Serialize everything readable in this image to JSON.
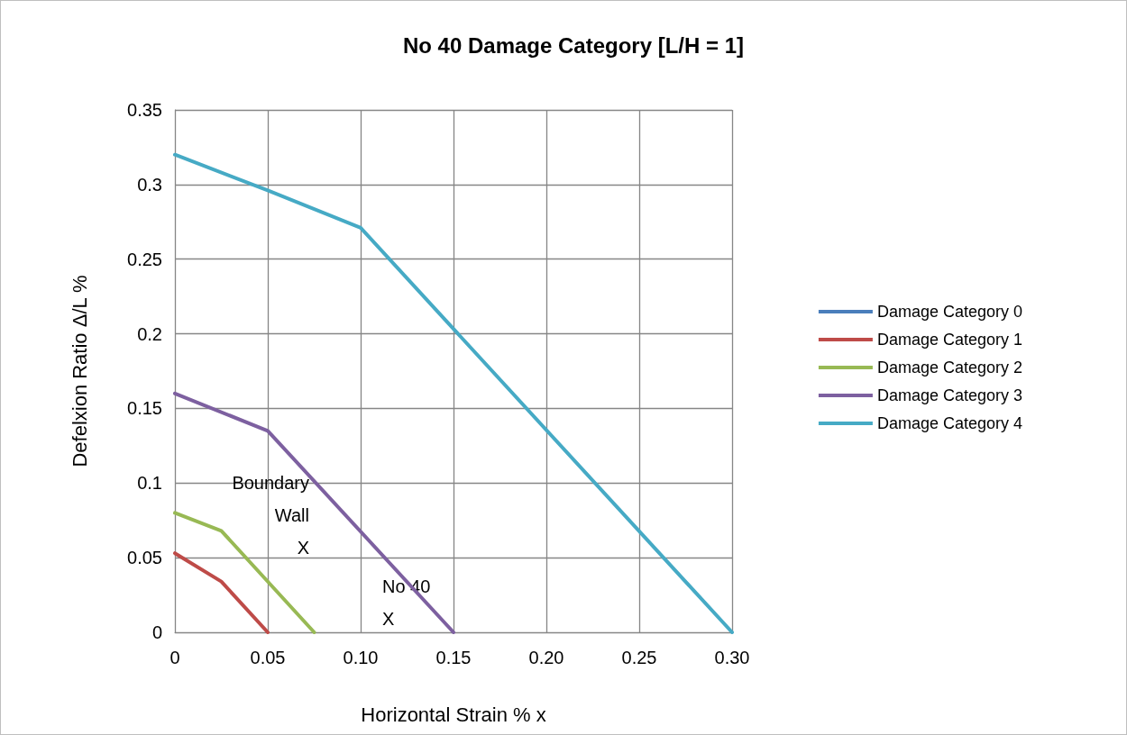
{
  "chart_data": {
    "type": "line",
    "title": "No 40 Damage Category [L/H = 1]",
    "xlabel": "Horizontal Strain % x",
    "ylabel": "Defelxion Ratio Δ/L %",
    "series": [
      {
        "name": "Damage Category 0",
        "color": "#4a7ebb"
      },
      {
        "name": "Damage Category 1",
        "color": "#be4b48",
        "x": [
          0,
          0.025,
          0.05
        ],
        "values": [
          0.053,
          0.034,
          0
        ]
      },
      {
        "name": "Damage Category 2",
        "color": "#98b954",
        "x": [
          0,
          0.025,
          0.075
        ],
        "values": [
          0.08,
          0.068,
          0
        ]
      },
      {
        "name": "Damage Category 3",
        "color": "#7d60a0",
        "x": [
          0,
          0.05,
          0.15
        ],
        "values": [
          0.16,
          0.135,
          0
        ]
      },
      {
        "name": "Damage Category 4",
        "color": "#46aac5",
        "x": [
          0,
          0.05,
          0.1,
          0.3
        ],
        "values": [
          0.32,
          0.296,
          0.271,
          0
        ]
      }
    ],
    "xlim": [
      0,
      0.3
    ],
    "xticks": [
      0,
      0.05,
      {
        "value": 0.1,
        "label": "0.10"
      },
      {
        "value": 0.15,
        "label": "0.15"
      },
      {
        "value": 0.2,
        "label": "0.20"
      },
      0.25,
      {
        "value": 0.3,
        "label": "0.30"
      }
    ],
    "ylim": [
      0,
      0.35
    ],
    "yticks": [
      0,
      0.05,
      0.1,
      0.15,
      0.2,
      0.25,
      0.3,
      0.35
    ],
    "annotations": [
      "Boundary\nWall\nX",
      "No 40\nX"
    ],
    "grid": true,
    "legend": "right",
    "marker": "none",
    "line_style": "solid"
  }
}
